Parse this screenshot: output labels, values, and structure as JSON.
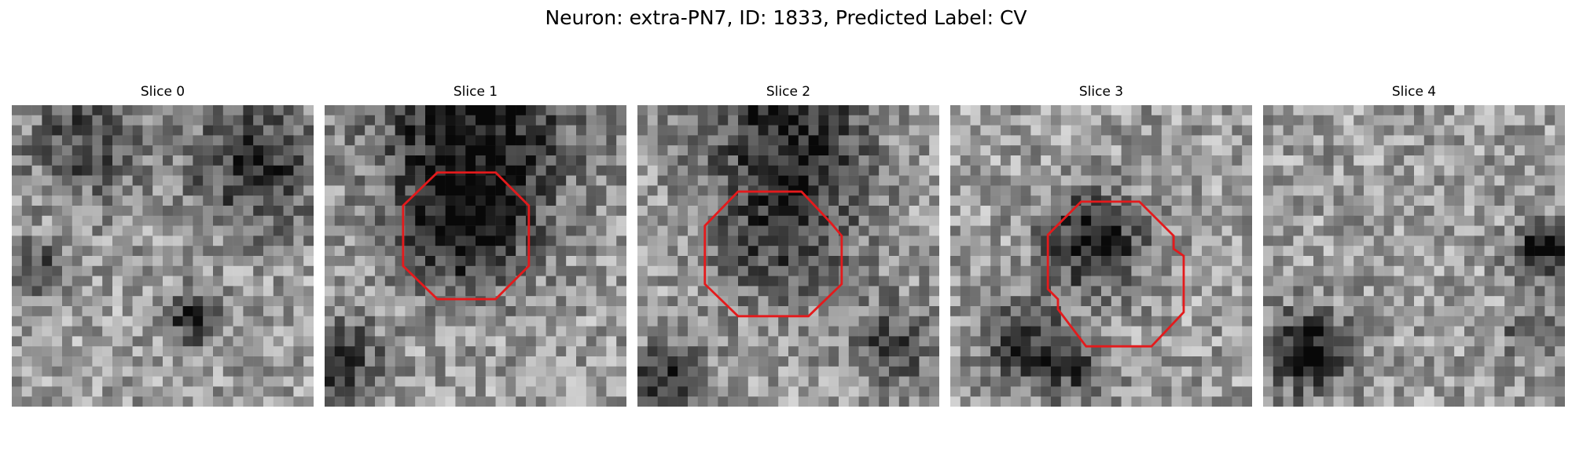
{
  "figure": {
    "title": "Neuron: extra-PN7, ID: 1833, Predicted Label: CV"
  },
  "panels": [
    {
      "title": "Slice 0",
      "seed": 11,
      "contour": false,
      "dark_spots": [
        [
          0.6,
          0.7,
          0.09,
          0.55
        ],
        [
          0.25,
          0.12,
          0.2,
          0.35
        ],
        [
          0.8,
          0.2,
          0.22,
          0.45
        ],
        [
          0.1,
          0.55,
          0.1,
          0.4
        ]
      ]
    },
    {
      "title": "Slice 1",
      "seed": 23,
      "contour": true,
      "dark_spots": [
        [
          0.47,
          0.42,
          0.22,
          0.45
        ],
        [
          0.5,
          0.05,
          0.35,
          0.55
        ],
        [
          0.05,
          0.85,
          0.15,
          0.4
        ]
      ]
    },
    {
      "title": "Slice 2",
      "seed": 37,
      "contour": true,
      "dark_spots": [
        [
          0.48,
          0.42,
          0.26,
          0.35
        ],
        [
          0.5,
          0.03,
          0.3,
          0.45
        ],
        [
          0.1,
          0.9,
          0.12,
          0.45
        ],
        [
          0.85,
          0.8,
          0.15,
          0.35
        ]
      ]
    },
    {
      "title": "Slice 3",
      "seed": 41,
      "contour": true,
      "dark_spots": [
        [
          0.48,
          0.45,
          0.17,
          0.55
        ],
        [
          0.25,
          0.8,
          0.16,
          0.45
        ],
        [
          0.45,
          0.9,
          0.1,
          0.3
        ]
      ]
    },
    {
      "title": "Slice 4",
      "seed": 59,
      "contour": false,
      "dark_spots": [
        [
          0.15,
          0.82,
          0.14,
          0.6
        ],
        [
          0.92,
          0.48,
          0.1,
          0.55
        ],
        [
          0.88,
          0.75,
          0.08,
          0.35
        ]
      ]
    }
  ],
  "colors": {
    "contour": "#e41a1c"
  }
}
